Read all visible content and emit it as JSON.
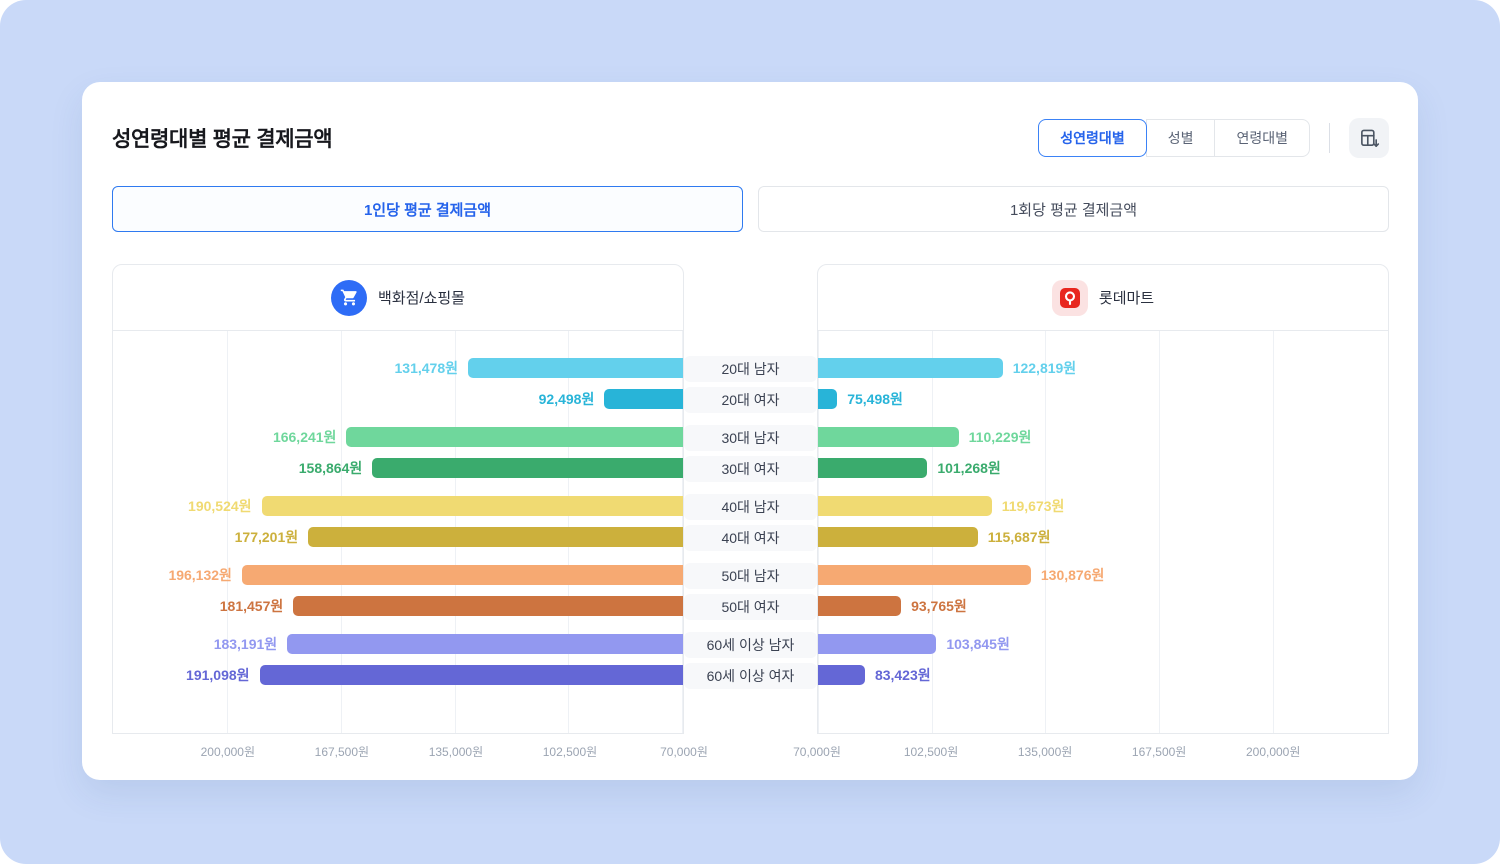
{
  "header": {
    "title": "성연령대별 평균 결제금액",
    "view_options": [
      {
        "label": "성연령대별",
        "active": true
      },
      {
        "label": "성별",
        "active": false
      },
      {
        "label": "연령대별",
        "active": false
      }
    ],
    "export": {
      "icon": "excel-export-icon"
    }
  },
  "metric_tabs": [
    {
      "label": "1인당 평균 결제금액",
      "active": true
    },
    {
      "label": "1회당 평균 결제금액",
      "active": false
    }
  ],
  "panels": [
    {
      "name": "백화점/쇼핑몰",
      "icon": "shopping-cart-icon",
      "side": "left"
    },
    {
      "name": "롯데마트",
      "icon": "lottemart-logo-icon",
      "side": "right"
    }
  ],
  "chart_data": {
    "type": "bar",
    "variant": "butterfly-horizontal",
    "categories": [
      "20대 남자",
      "20대 여자",
      "30대 남자",
      "30대 여자",
      "40대 남자",
      "40대 여자",
      "50대 남자",
      "50대 여자",
      "60세 이상 남자",
      "60세 이상 여자"
    ],
    "series": [
      {
        "name": "백화점/쇼핑몰",
        "side": "left",
        "values": [
          131478,
          92498,
          166241,
          158864,
          190524,
          177201,
          196132,
          181457,
          183191,
          191098
        ],
        "value_labels": [
          "131,478원",
          "92,498원",
          "166,241원",
          "158,864원",
          "190,524원",
          "177,201원",
          "196,132원",
          "181,457원",
          "183,191원",
          "191,098원"
        ]
      },
      {
        "name": "롯데마트",
        "side": "right",
        "values": [
          122819,
          75498,
          110229,
          101268,
          119673,
          115687,
          130876,
          93765,
          103845,
          83423
        ],
        "value_labels": [
          "122,819원",
          "75,498원",
          "110,229원",
          "101,268원",
          "119,673원",
          "115,687원",
          "130,876원",
          "93,765원",
          "103,845원",
          "83,423원"
        ]
      }
    ],
    "value_suffix": "원",
    "axis": {
      "min": 70000,
      "max": 233000,
      "ticks": [
        200000,
        167500,
        135000,
        102500,
        70000
      ],
      "tick_labels": [
        "200,000원",
        "167,500원",
        "135,000원",
        "102,500원",
        "70,000원"
      ]
    },
    "bar_colors": [
      "#63d0ec",
      "#28b4d8",
      "#6fd79c",
      "#3aab6d",
      "#f0da72",
      "#ccb03c",
      "#f6a972",
      "#cd7440",
      "#9298f0",
      "#6467d6"
    ],
    "grid": true,
    "legend_position": "none",
    "accent_color": "#2563eb",
    "background_color": "#c9d9f8"
  }
}
